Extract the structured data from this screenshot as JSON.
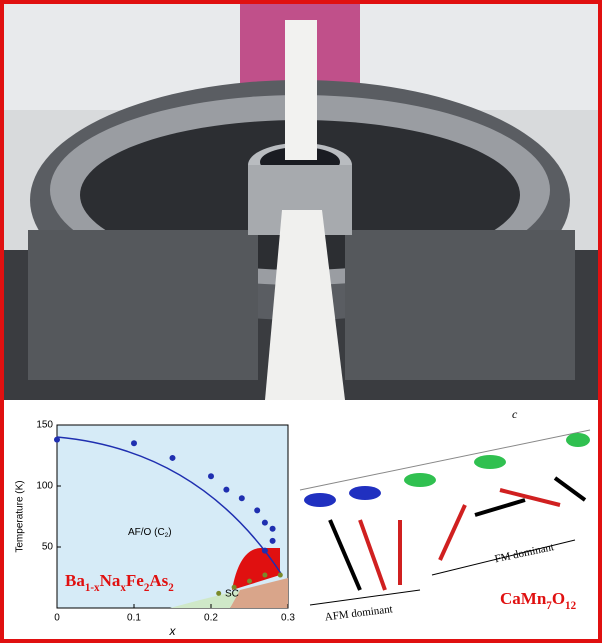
{
  "phase_diagram": {
    "type": "scatter",
    "ylabel": "Temperature (K)",
    "xlabel": "x",
    "xlim": [
      0,
      0.3
    ],
    "ylim": [
      0,
      150
    ],
    "xticks": [
      0,
      0.1,
      0.2,
      0.3
    ],
    "yticks": [
      50,
      100,
      150
    ],
    "region_label": [
      "AF/O (C",
      "2",
      ")"
    ],
    "sc_label": "SC",
    "compound": [
      "Ba",
      "1-x",
      "Na",
      "x",
      "Fe",
      "2",
      "As",
      "2"
    ],
    "series": [
      {
        "color": "#1f2fb0",
        "x": [
          0,
          0.1,
          0.15,
          0.2,
          0.22,
          0.24,
          0.26,
          0.27,
          0.28,
          0.28,
          0.27
        ],
        "values": [
          138,
          135,
          123,
          108,
          97,
          90,
          80,
          70,
          65,
          55,
          47
        ]
      },
      {
        "color": "#7a8a2a",
        "x": [
          0.21,
          0.23,
          0.25,
          0.27,
          0.29
        ],
        "values": [
          12,
          17,
          22,
          27,
          27
        ]
      }
    ]
  },
  "diagram": {
    "axis_label": "c",
    "fm_label": "FM dominant",
    "afm_label": "AFM dominant",
    "compound": [
      "CaMn",
      "7",
      "O",
      "12"
    ]
  }
}
